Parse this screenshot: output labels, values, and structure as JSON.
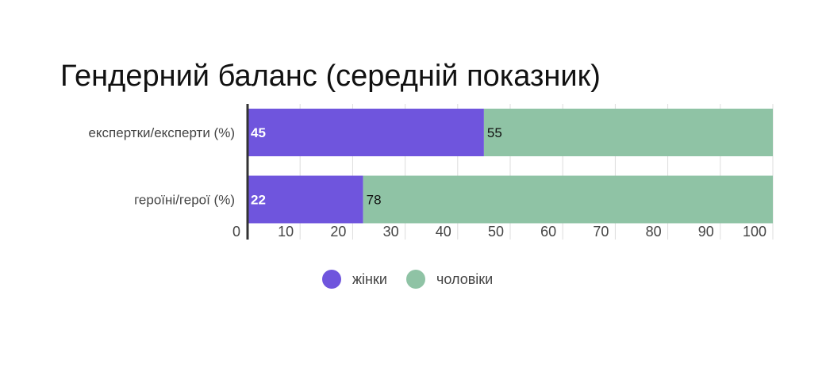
{
  "chart_data": {
    "type": "bar",
    "orientation": "horizontal",
    "stacked": true,
    "title": "Гендерний баланс (середній показник)",
    "categories": [
      "експертки/експерти (%)",
      "героїні/герої (%)"
    ],
    "series": [
      {
        "name": "жінки",
        "values": [
          45,
          22
        ],
        "color": "#6f55dd"
      },
      {
        "name": "чоловіки",
        "values": [
          55,
          78
        ],
        "color": "#8fc3a5"
      }
    ],
    "xlim": [
      0,
      100
    ],
    "xticks": [
      0,
      10,
      20,
      30,
      40,
      50,
      60,
      70,
      80,
      90,
      100
    ],
    "grid": true,
    "legend_position": "bottom"
  }
}
